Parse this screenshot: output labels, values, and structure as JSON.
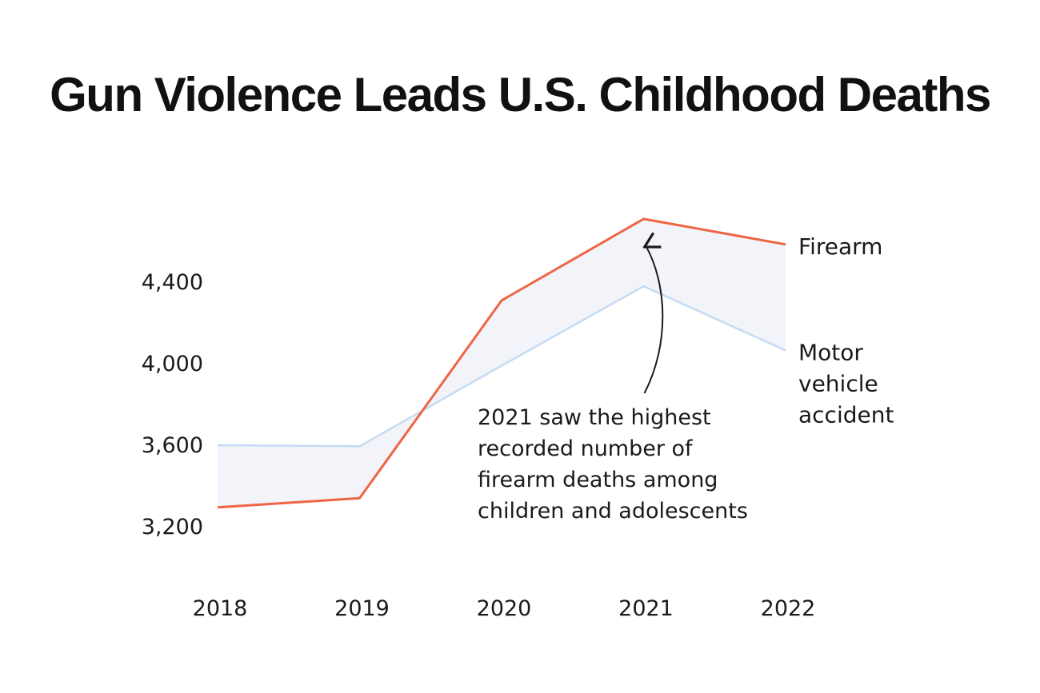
{
  "chart_data": {
    "type": "line",
    "title": "Gun Violence Leads U.S. Childhood Deaths",
    "xlabel": "",
    "ylabel": "",
    "x": [
      "2018",
      "2019",
      "2020",
      "2021",
      "2022"
    ],
    "y_ticks": [
      {
        "value": 3200,
        "label": "3,200"
      },
      {
        "value": 3600,
        "label": "3,600"
      },
      {
        "value": 4000,
        "label": "4,000"
      },
      {
        "value": 4400,
        "label": "4,400"
      }
    ],
    "ylim": [
      3200,
      4800
    ],
    "series": [
      {
        "name": "Firearm",
        "label_lines": [
          "Firearm"
        ],
        "color": "#ef6445",
        "values": [
          3295,
          3340,
          4310,
          4710,
          4585
        ]
      },
      {
        "name": "Motor vehicle accident",
        "label_lines": [
          "Motor",
          "vehicle",
          "accident"
        ],
        "color": "#c5dbf3",
        "values": [
          3600,
          3595,
          3990,
          4380,
          4065
        ]
      }
    ],
    "fill_color": "#f3f4f9",
    "annotation": {
      "lines": [
        "2021 saw the highest",
        "recorded number of",
        "firearm deaths among",
        "children and adolescents"
      ],
      "points_to": {
        "x": "2021",
        "series": "Firearm"
      }
    },
    "grid": false,
    "legend": "inline-right"
  }
}
